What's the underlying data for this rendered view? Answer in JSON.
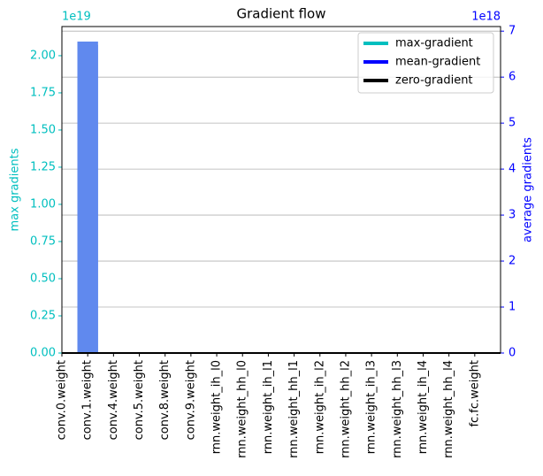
{
  "chart_data": {
    "type": "bar",
    "title": "Gradient flow",
    "y_label": "max gradients",
    "y2_label": "average gradients",
    "y_offset_label": "1e19",
    "y2_offset_label": "1e18",
    "categories": [
      "conv.0.weight",
      "conv.1.weight",
      "conv.4.weight",
      "conv.5.weight",
      "conv.8.weight",
      "conv.9.weight",
      "rnn.weight_ih_l0",
      "rnn.weight_hh_l0",
      "rnn.weight_ih_l1",
      "rnn.weight_hh_l1",
      "rnn.weight_ih_l2",
      "rnn.weight_hh_l2",
      "rnn.weight_ih_l3",
      "rnn.weight_hh_l3",
      "rnn.weight_ih_l4",
      "rnn.weight_hh_l4",
      "fc.fc.weight"
    ],
    "series": [
      {
        "name": "max-gradient",
        "color": "#00bfbf",
        "values": [
          0,
          2.095e+19,
          0,
          0,
          0,
          0,
          0,
          0,
          0,
          0,
          0,
          0,
          0,
          0,
          0,
          0,
          0
        ]
      },
      {
        "name": "mean-gradient",
        "color": "#0000ff",
        "axis": "y2",
        "values": [
          0,
          6.7e+18,
          0,
          0,
          0,
          0,
          0,
          0,
          0,
          0,
          0,
          0,
          0,
          0,
          0,
          0,
          0
        ]
      },
      {
        "name": "zero-gradient",
        "color": "#000000"
      }
    ],
    "bar_color": "#6089ee",
    "ylim": [
      0,
      2.196e+19
    ],
    "yticks": [
      {
        "value": 0,
        "label": "0.00"
      },
      {
        "value": 2.5e+18,
        "label": "0.25"
      },
      {
        "value": 5e+18,
        "label": "0.50"
      },
      {
        "value": 7.5e+18,
        "label": "0.75"
      },
      {
        "value": 1e+19,
        "label": "1.00"
      },
      {
        "value": 1.25e+19,
        "label": "1.25"
      },
      {
        "value": 1.5e+19,
        "label": "1.50"
      },
      {
        "value": 1.75e+19,
        "label": "1.75"
      },
      {
        "value": 2e+19,
        "label": "2.00"
      }
    ],
    "y_color": "#00bfbf",
    "y2lim": [
      0,
      7.1e+18
    ],
    "y2ticks": [
      {
        "value": 0,
        "label": "0"
      },
      {
        "value": 1e+18,
        "label": "1"
      },
      {
        "value": 2e+18,
        "label": "2"
      },
      {
        "value": 3e+18,
        "label": "3"
      },
      {
        "value": 4e+18,
        "label": "4"
      },
      {
        "value": 5e+18,
        "label": "5"
      },
      {
        "value": 6e+18,
        "label": "6"
      },
      {
        "value": 7e+18,
        "label": "7"
      }
    ],
    "y2_color": "#0000ff",
    "grid": "y2",
    "legend": "upper right"
  }
}
